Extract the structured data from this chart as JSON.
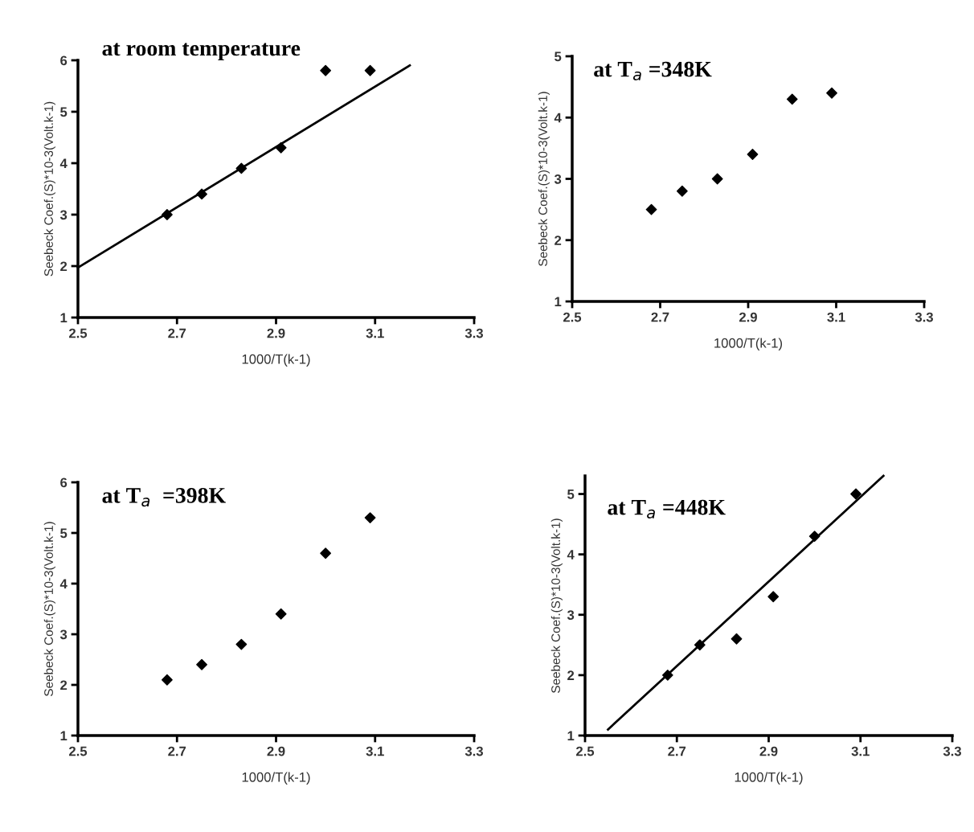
{
  "chart_data": [
    {
      "type": "scatter",
      "title": "at room temperature",
      "xlabel": "1000/T(k-1)",
      "ylabel": "Seebeck Coef.(S)*10-3(Volt.k-1)",
      "xlim": [
        2.5,
        3.3
      ],
      "xticks": [
        2.5,
        2.7,
        2.9,
        3.1,
        3.3
      ],
      "ylim": [
        1,
        6
      ],
      "yticks": [
        1,
        2,
        3,
        4,
        5,
        6
      ],
      "marker": "diamond",
      "grid": false,
      "legend": false,
      "series": [
        {
          "color": "#000000",
          "x": [
            2.68,
            2.75,
            2.83,
            2.91,
            3.0,
            3.09
          ],
          "values": [
            3.0,
            3.4,
            3.9,
            4.3,
            5.8,
            5.8
          ]
        },
        {
          "type": "line",
          "marker": "none",
          "color": "#000000",
          "x": [
            2.5,
            3.17
          ],
          "values": [
            1.97,
            5.9
          ]
        }
      ]
    },
    {
      "type": "scatter",
      "title": "at T$_{a}$ =348K",
      "xlabel": "1000/T(k-1)",
      "ylabel": "Seebeck Coef.(S)*10-3(Volt.k-1)",
      "xlim": [
        2.5,
        3.3
      ],
      "xticks": [
        2.5,
        2.7,
        2.9,
        3.1,
        3.3
      ],
      "ylim": [
        1,
        5
      ],
      "yticks": [
        1,
        2,
        3,
        4,
        5
      ],
      "marker": "diamond",
      "grid": false,
      "legend": false,
      "series": [
        {
          "color": "#000000",
          "x": [
            2.68,
            2.75,
            2.83,
            2.91,
            3.0,
            3.09
          ],
          "values": [
            2.5,
            2.8,
            3.0,
            3.4,
            4.3,
            4.4
          ]
        }
      ]
    },
    {
      "type": "scatter",
      "title": "at T$_{a}$  =398K",
      "xlabel": "1000/T(k-1)",
      "ylabel": "Seebeck Coef.(S)*10-3(Volt.k-1)",
      "xlim": [
        2.5,
        3.3
      ],
      "xticks": [
        2.5,
        2.7,
        2.9,
        3.1,
        3.3
      ],
      "ylim": [
        1,
        6
      ],
      "yticks": [
        1,
        2,
        3,
        4,
        5,
        6
      ],
      "marker": "diamond",
      "grid": false,
      "legend": false,
      "series": [
        {
          "color": "#000000",
          "x": [
            2.68,
            2.75,
            2.83,
            2.91,
            3.0,
            3.09
          ],
          "values": [
            2.1,
            2.4,
            2.8,
            3.4,
            4.6,
            5.3
          ]
        }
      ]
    },
    {
      "type": "scatter",
      "title": "at T$_{a}$ =448K",
      "xlabel": "1000/T(k-1)",
      "ylabel": "Seebeck Coef.(S)*10-3(Volt.k-1)",
      "xlim": [
        2.5,
        3.3
      ],
      "xticks": [
        2.5,
        2.7,
        2.9,
        3.1,
        3.3
      ],
      "ylim": [
        1,
        5.3
      ],
      "yticks": [
        1,
        2,
        3,
        4,
        5
      ],
      "marker": "diamond",
      "grid": false,
      "legend": false,
      "series": [
        {
          "color": "#000000",
          "x": [
            2.68,
            2.75,
            2.83,
            2.91,
            3.0,
            3.09
          ],
          "values": [
            2.0,
            2.5,
            2.6,
            3.3,
            4.3,
            5.0
          ]
        },
        {
          "type": "line",
          "marker": "none",
          "color": "#000000",
          "x": [
            2.55,
            3.15
          ],
          "values": [
            1.1,
            5.3
          ]
        }
      ]
    }
  ]
}
